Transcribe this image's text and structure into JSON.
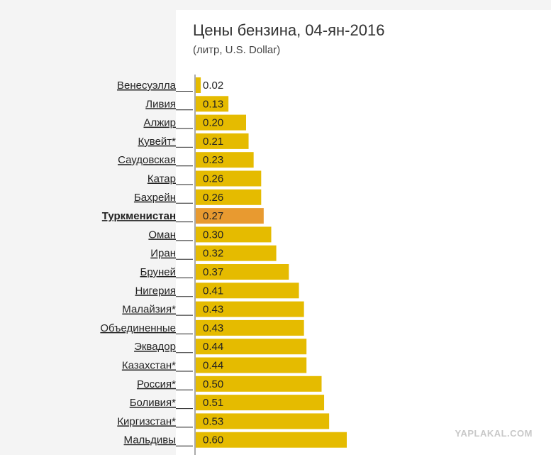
{
  "chart_data": {
    "type": "bar",
    "orientation": "horizontal",
    "title": "Цены бензина, 04-ян-2016",
    "subtitle": "(литр, U.S. Dollar)",
    "categories": [
      "Венесуэлла",
      "Ливия",
      "Алжир",
      "Кувейт*",
      "Саудовская",
      "Катар",
      "Бахрейн",
      "Туркменистан",
      "Оман",
      "Иран",
      "Бруней",
      "Нигерия",
      "Малайзия*",
      "Объединенные",
      "Эквадор",
      "Казахстан*",
      "Россия*",
      "Боливия*",
      "Киргизстан*",
      "Мальдивы"
    ],
    "values": [
      0.02,
      0.13,
      0.2,
      0.21,
      0.23,
      0.26,
      0.26,
      0.27,
      0.3,
      0.32,
      0.37,
      0.41,
      0.43,
      0.43,
      0.44,
      0.44,
      0.5,
      0.51,
      0.53,
      0.6
    ],
    "value_labels": [
      "0.02",
      "0.13",
      "0.20",
      "0.21",
      "0.23",
      "0.26",
      "0.26",
      "0.27",
      "0.30",
      "0.32",
      "0.37",
      "0.41",
      "0.43",
      "0.43",
      "0.44",
      "0.44",
      "0.50",
      "0.51",
      "0.53",
      "0.60"
    ],
    "highlight_index": 7,
    "colors": {
      "bar": "#e5bb00",
      "highlight": "#e89a30",
      "axis": "#555555",
      "text": "#333333"
    },
    "grid": false,
    "legend": "none"
  },
  "watermark": "YAPLAKAL.COM"
}
